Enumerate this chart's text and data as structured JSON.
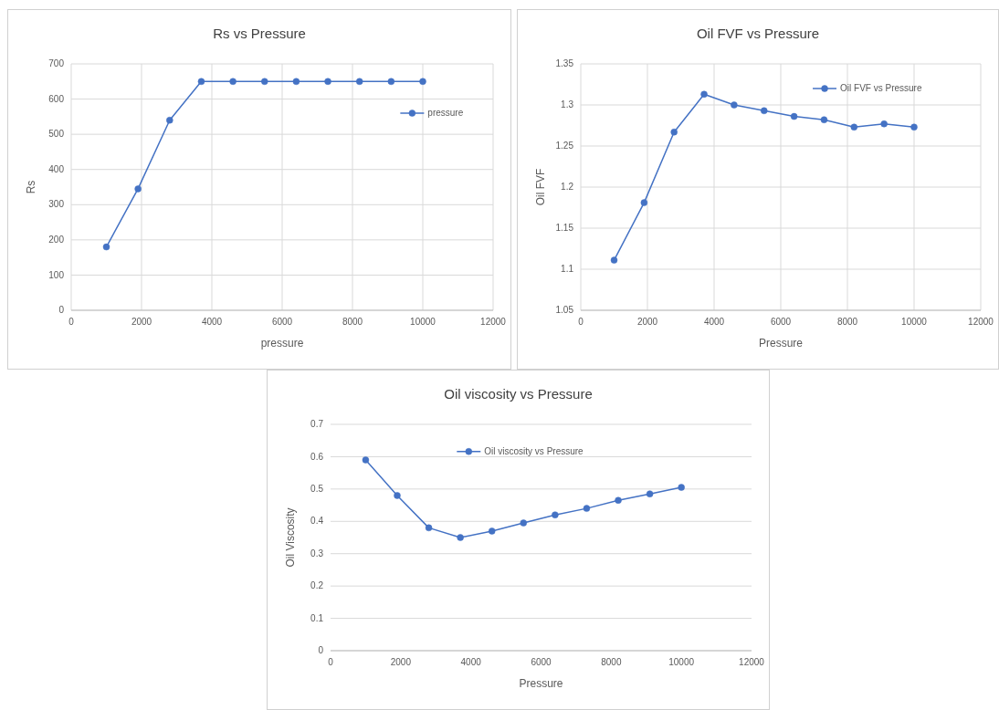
{
  "chart_data": [
    {
      "type": "line",
      "title": "Rs vs Pressure",
      "xlabel": "pressure",
      "ylabel": "Rs",
      "x": [
        1000,
        1900,
        2800,
        3700,
        4600,
        5500,
        6400,
        7300,
        8200,
        9100,
        10000
      ],
      "series": [
        {
          "name": "pressure",
          "color": "#4472c4",
          "values": [
            180,
            345,
            540,
            650,
            650,
            650,
            650,
            650,
            650,
            650,
            650
          ]
        }
      ],
      "xlim": [
        0,
        12000
      ],
      "xticks": [
        0,
        2000,
        4000,
        6000,
        8000,
        10000,
        12000
      ],
      "ylim": [
        0,
        700
      ],
      "yticks": [
        0,
        100,
        200,
        300,
        400,
        500,
        600,
        700
      ],
      "grid": true,
      "legend": "right",
      "marker": "circle",
      "line_style": "solid"
    },
    {
      "type": "line",
      "title": "Oil FVF vs Pressure",
      "xlabel": "Pressure",
      "ylabel": "Oil FVF",
      "x": [
        1000,
        1900,
        2800,
        3700,
        4600,
        5500,
        6400,
        7300,
        8200,
        9100,
        10000
      ],
      "series": [
        {
          "name": "Oil FVF vs Pressure",
          "color": "#4472c4",
          "values": [
            1.111,
            1.181,
            1.267,
            1.313,
            1.3,
            1.293,
            1.286,
            1.282,
            1.273,
            1.277,
            1.273
          ]
        }
      ],
      "xlim": [
        0,
        12000
      ],
      "xticks": [
        0,
        2000,
        4000,
        6000,
        8000,
        10000,
        12000
      ],
      "ylim": [
        1.05,
        1.35
      ],
      "yticks": [
        {
          "value": 1.05,
          "label": "1.05"
        },
        {
          "value": 1.1,
          "label": "1.1"
        },
        {
          "value": 1.15,
          "label": "1.15"
        },
        {
          "value": 1.2,
          "label": "1.2"
        },
        {
          "value": 1.25,
          "label": "1.25"
        },
        {
          "value": 1.3,
          "label": "1.3"
        },
        {
          "value": 1.35,
          "label": "1.35"
        }
      ],
      "grid": true,
      "legend": "top right",
      "marker": "circle",
      "line_style": "solid"
    },
    {
      "type": "line",
      "title": "Oil viscosity vs Pressure",
      "xlabel": "Pressure",
      "ylabel": "Oil Viscosity",
      "x": [
        1000,
        1900,
        2800,
        3700,
        4600,
        5500,
        6400,
        7300,
        8200,
        9100,
        10000
      ],
      "series": [
        {
          "name": "Oil viscosity vs Pressure",
          "color": "#4472c4",
          "values": [
            0.59,
            0.48,
            0.38,
            0.35,
            0.37,
            0.395,
            0.42,
            0.44,
            0.465,
            0.485,
            0.505
          ]
        }
      ],
      "xlim": [
        0,
        12000
      ],
      "xticks": [
        0,
        2000,
        4000,
        6000,
        8000,
        10000,
        12000
      ],
      "ylim": [
        0,
        0.7
      ],
      "yticks": [
        0,
        0.1,
        0.2,
        0.3,
        0.4,
        0.5,
        0.6,
        0.7
      ],
      "grid": "y",
      "legend": "top",
      "marker": "circle",
      "line_style": "solid"
    }
  ]
}
